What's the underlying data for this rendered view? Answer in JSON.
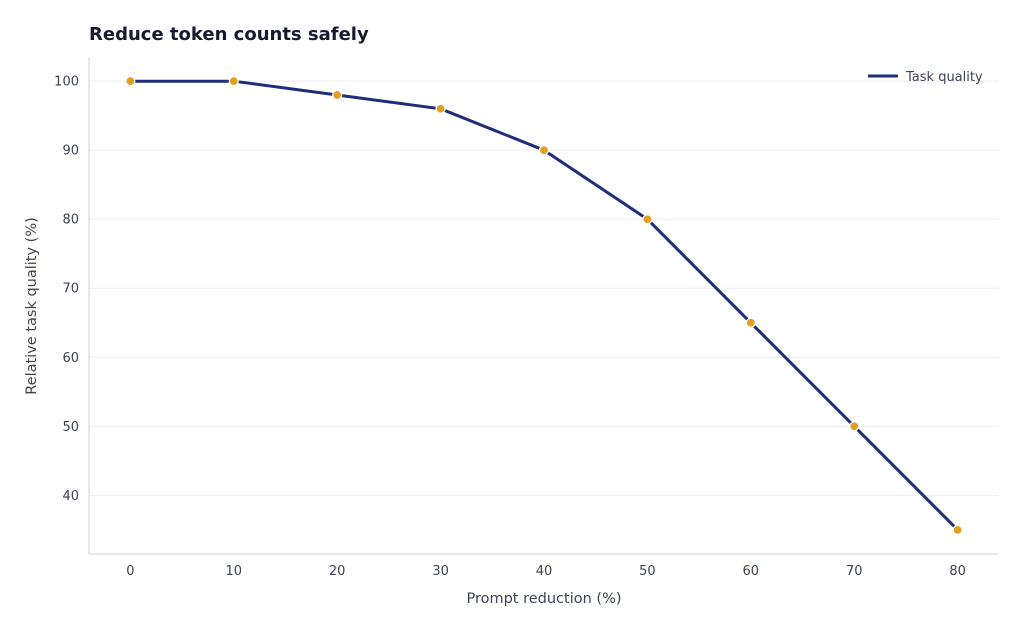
{
  "colors": {
    "line": "#1f2d7a",
    "marker": "#e0a020",
    "marker_edge": "#ffffff",
    "text": "#3d4350",
    "title": "#161a2e",
    "grid": "#eeeeee",
    "axis": "#d0d0d0"
  },
  "chart_data": {
    "type": "line",
    "title": "Reduce token counts safely",
    "xlabel": "Prompt reduction (%)",
    "ylabel": "Relative task quality (%)",
    "x": [
      0,
      10,
      20,
      30,
      40,
      50,
      60,
      70,
      80
    ],
    "xticks": [
      "0",
      "10",
      "20",
      "30",
      "40",
      "50",
      "60",
      "70",
      "80"
    ],
    "yticks": [
      "40",
      "50",
      "60",
      "70",
      "80",
      "90",
      "100"
    ],
    "xlim": [
      -4,
      84
    ],
    "ylim": [
      31.5,
      103.5
    ],
    "grid": "horizontal",
    "legend_position": "top-right",
    "series": [
      {
        "name": "Task quality",
        "values": [
          100,
          100,
          98,
          96,
          90,
          80,
          65,
          50,
          35
        ]
      }
    ]
  }
}
